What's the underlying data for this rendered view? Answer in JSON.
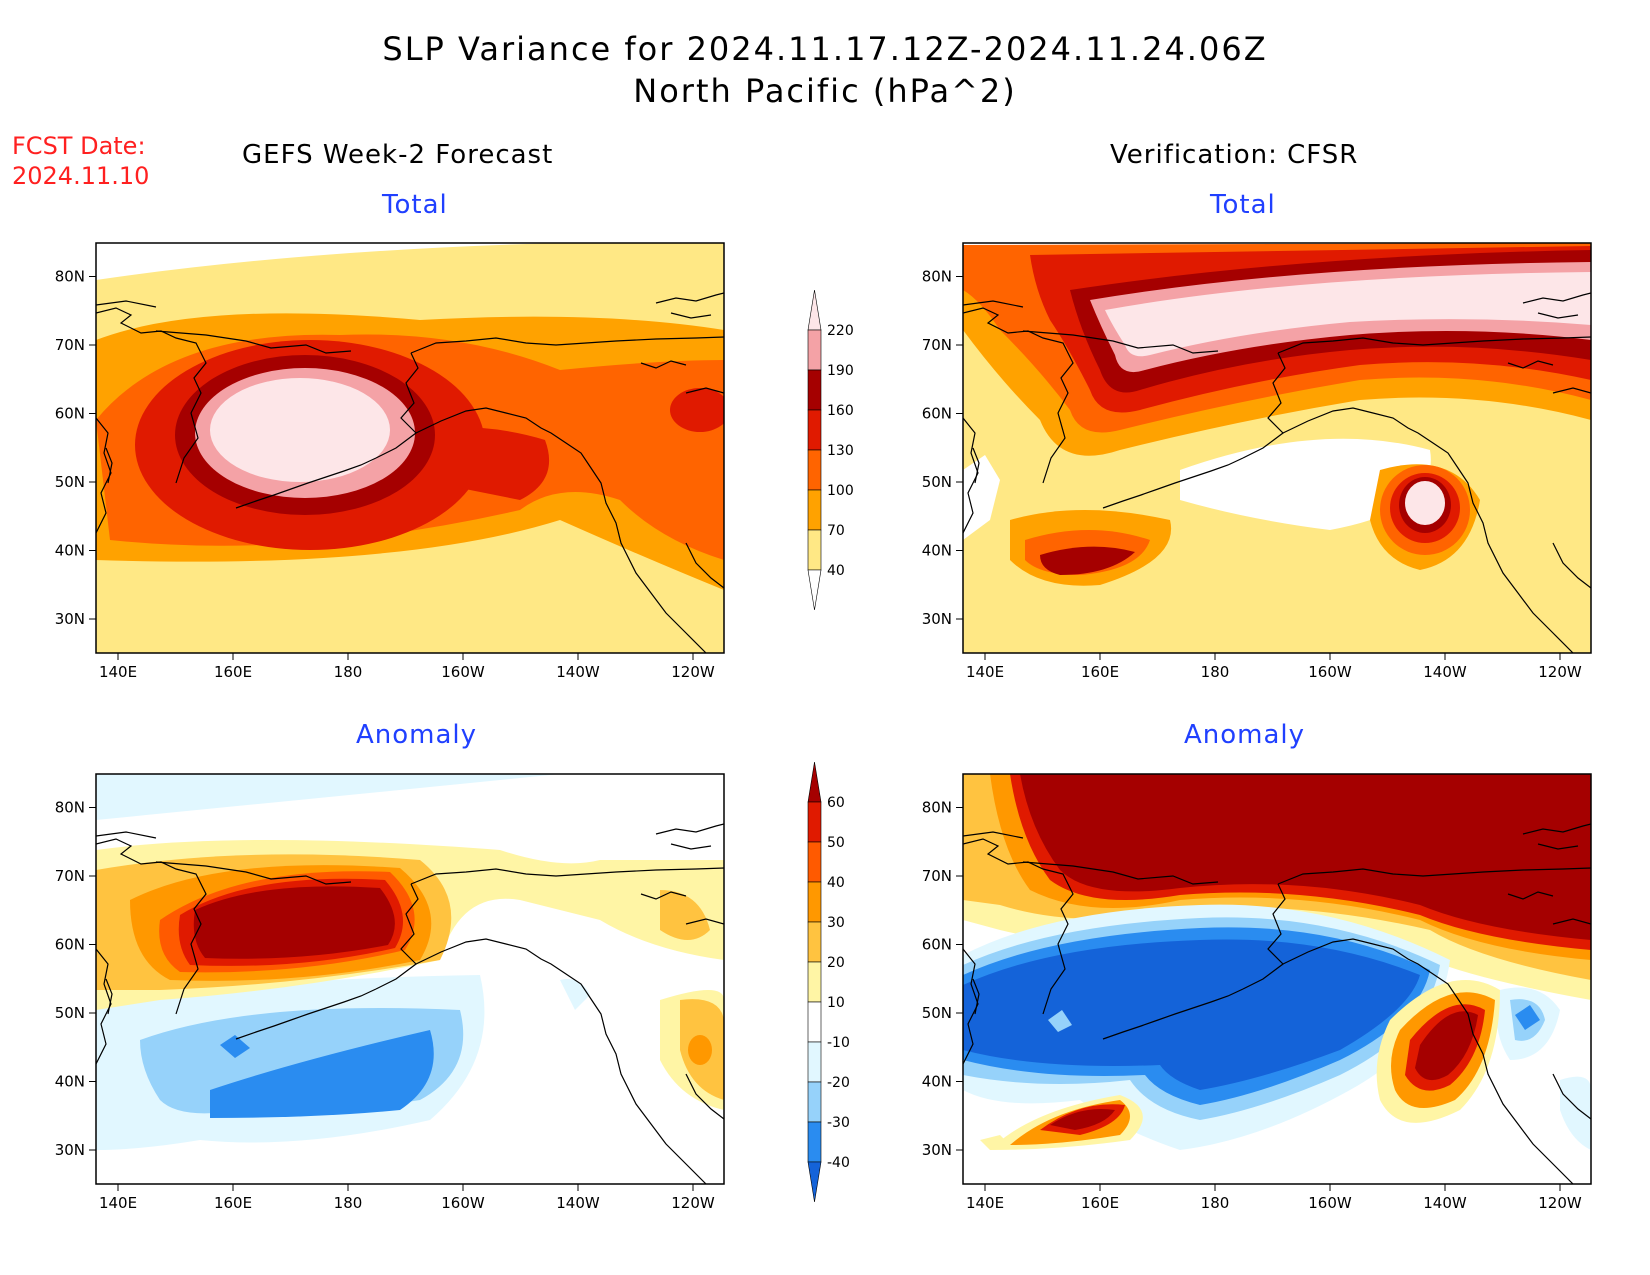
{
  "title_line1": "SLP Variance for 2024.11.17.12Z-2024.11.24.06Z",
  "title_line2": "North Pacific (hPa^2)",
  "fcst_date_label": "FCST Date:",
  "fcst_date_value": "2024.11.10",
  "left_column_title": "GEFS Week-2 Forecast",
  "right_column_title": "Verification: CFSR",
  "panels": [
    {
      "id": "gefs-total",
      "label": "Total"
    },
    {
      "id": "cfsr-total",
      "label": "Total"
    },
    {
      "id": "gefs-anomaly",
      "label": "Anomaly"
    },
    {
      "id": "cfsr-anomaly",
      "label": "Anomaly"
    }
  ],
  "axes": {
    "x_ticks": [
      "140E",
      "160E",
      "180",
      "160W",
      "140W",
      "120W"
    ],
    "y_ticks": [
      "30N",
      "40N",
      "50N",
      "60N",
      "70N",
      "80N"
    ]
  },
  "total_colorbar": {
    "levels": [
      "40",
      "70",
      "100",
      "130",
      "160",
      "190",
      "220"
    ],
    "colors": [
      "#ffe885",
      "#ffa200",
      "#ff6400",
      "#e01a00",
      "#a50000",
      "#f4a2a6",
      "#fde6e8"
    ]
  },
  "anomaly_colorbar": {
    "levels": [
      "-40",
      "-30",
      "-20",
      "-10",
      "10",
      "20",
      "30",
      "40",
      "50",
      "60"
    ],
    "colors": [
      "#1463d9",
      "#2a8cf0",
      "#96d2fa",
      "#e1f7ff",
      "#ffffff",
      "#fff5a5",
      "#ffc340",
      "#ff9800",
      "#ff5a00",
      "#e01a00",
      "#a50000"
    ]
  }
}
